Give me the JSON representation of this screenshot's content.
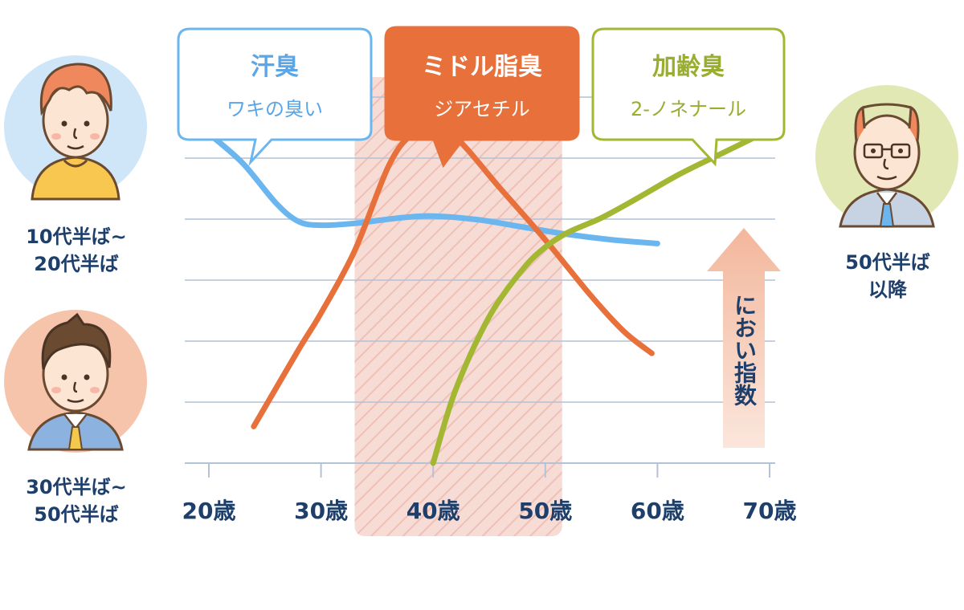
{
  "chart_data": {
    "type": "line",
    "x_unit": "歳",
    "x_ticks": [
      20,
      30,
      40,
      50,
      60,
      70
    ],
    "x_tick_labels": [
      "20歳",
      "30歳",
      "40歳",
      "50歳",
      "60歳",
      "70歳"
    ],
    "xlim": [
      20,
      70
    ],
    "ylim": [
      0,
      10
    ],
    "y_label": "におい指数",
    "y_ticks_shown": false,
    "grid": true,
    "highlight_range": [
      33,
      51.5
    ],
    "series": [
      {
        "name": "汗臭",
        "subtitle": "ワキの臭い",
        "color": "#6cb6f0",
        "x": [
          20,
          23,
          26,
          28,
          30,
          33,
          37,
          40,
          44,
          48,
          52,
          56,
          60
        ],
        "y": [
          9.0,
          8.2,
          7.1,
          6.6,
          6.5,
          6.55,
          6.7,
          6.75,
          6.65,
          6.45,
          6.25,
          6.1,
          6.0
        ]
      },
      {
        "name": "ミドル脂臭",
        "subtitle": "ジアセチル",
        "color": "#e8703a",
        "x": [
          24,
          28,
          30,
          33,
          36,
          38,
          40,
          42,
          46,
          50,
          54,
          57,
          59.5
        ],
        "y": [
          1.0,
          3.1,
          4.1,
          5.8,
          8.1,
          8.95,
          9.05,
          8.9,
          7.5,
          6.1,
          4.6,
          3.6,
          3.0
        ]
      },
      {
        "name": "加齢臭",
        "subtitle": "2-ノネナール",
        "color": "#a4b733",
        "x": [
          40,
          42,
          45,
          48,
          50,
          52,
          55,
          58,
          62,
          66,
          70
        ],
        "y": [
          0.0,
          2.0,
          4.0,
          5.3,
          5.9,
          6.3,
          6.7,
          7.2,
          7.9,
          8.5,
          9.1
        ]
      }
    ]
  },
  "bubbles": {
    "sweat": {
      "title": "汗臭",
      "subtitle": "ワキの臭い",
      "border": "#6cb6f0",
      "fill": "#ffffff",
      "title_color": "#5aa6e6",
      "sub_color": "#5aa6e6"
    },
    "middle": {
      "title": "ミドル脂臭",
      "subtitle": "ジアセチル",
      "border": "#e8703a",
      "fill": "#e8703a",
      "title_color": "#ffffff",
      "sub_color": "#ffffff"
    },
    "aging": {
      "title": "加齢臭",
      "subtitle": "2-ノネナール",
      "border": "#a4b733",
      "fill": "#ffffff",
      "title_color": "#99ad2e",
      "sub_color": "#99ad2e"
    }
  },
  "age_groups": {
    "g1": {
      "line1": "10代半ば~",
      "line2": "20代半ば",
      "bg": "#cfe6f9"
    },
    "g2": {
      "line1": "30代半ば~",
      "line2": "50代半ば",
      "bg": "#f6c3ab"
    },
    "g3": {
      "line1": "50代半ば",
      "line2": "以降",
      "bg": "#e1e8b4"
    }
  },
  "arrow_label": "におい指数",
  "colors": {
    "text": "#1f3f6b",
    "grid": "#b4c2d6",
    "highlight": "#f7dcd6",
    "hatch": "#eec0b6",
    "arrow": "#f3b79c"
  }
}
